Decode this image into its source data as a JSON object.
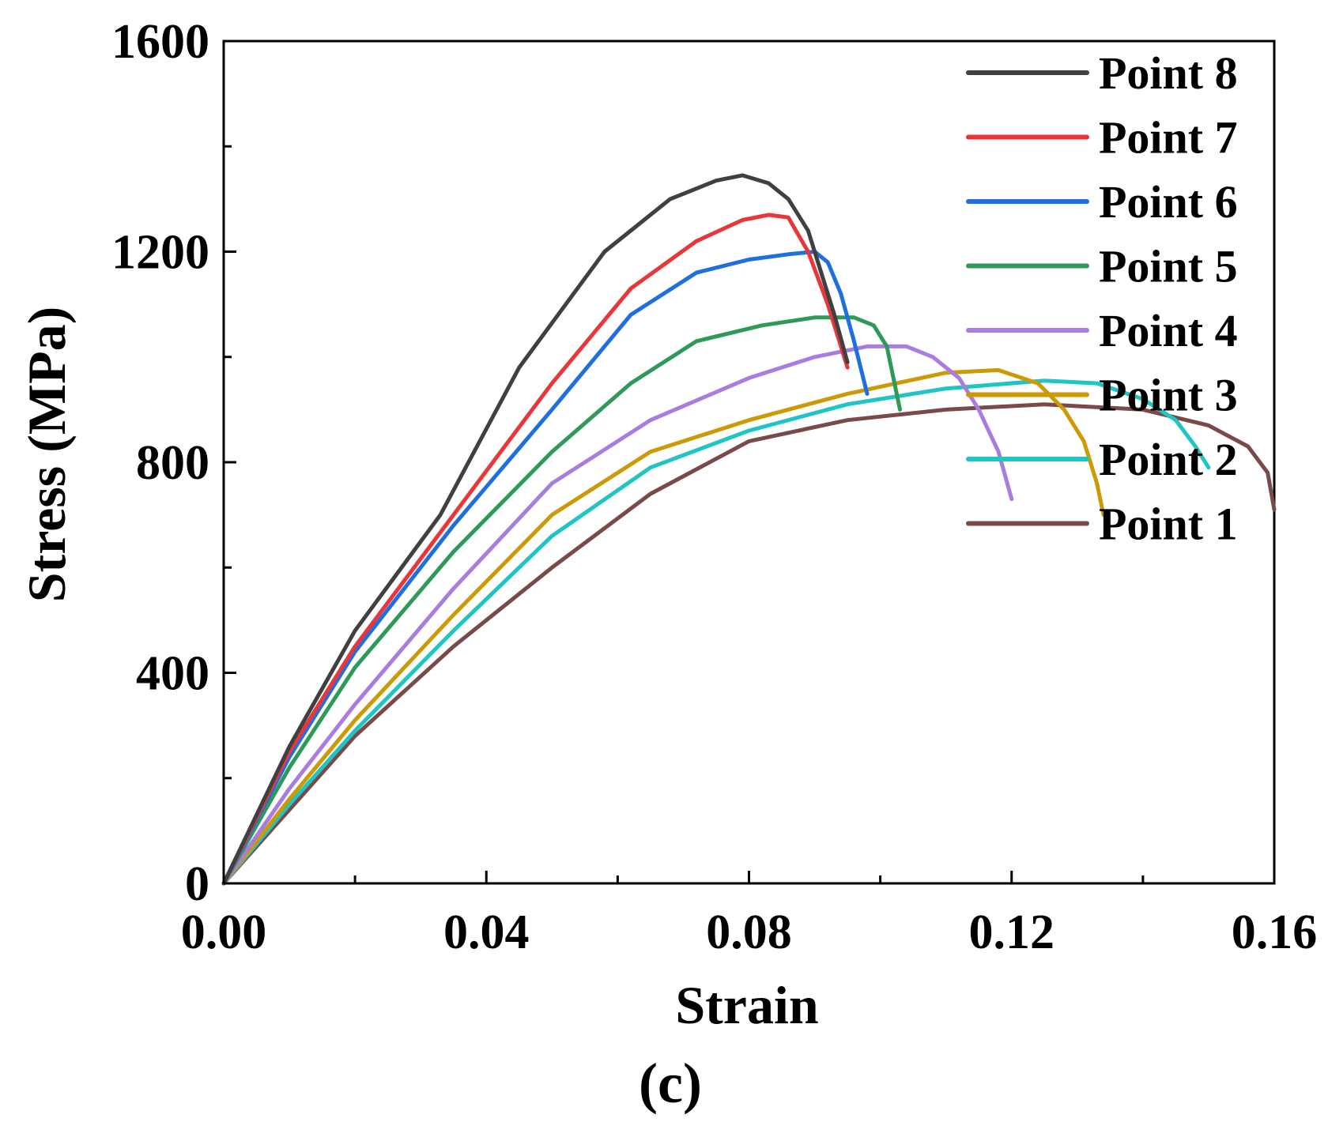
{
  "chart_data": {
    "type": "line",
    "title": "",
    "xlabel": "Strain",
    "ylabel": "Stress (MPa)",
    "caption": "(c)",
    "xlim": [
      0,
      0.16
    ],
    "ylim": [
      0,
      1600
    ],
    "xticks": [
      "0.00",
      "0.04",
      "0.08",
      "0.12",
      "0.16"
    ],
    "xtick_values": [
      0,
      0.04,
      0.08,
      0.12,
      0.16
    ],
    "yticks": [
      "0",
      "400",
      "800",
      "1200",
      "1600"
    ],
    "ytick_values": [
      0,
      400,
      800,
      1200,
      1600
    ],
    "legend_position": "top-right",
    "series": [
      {
        "name": "Point 8",
        "color": "#404040",
        "x": [
          0,
          0.01,
          0.02,
          0.033,
          0.045,
          0.058,
          0.068,
          0.075,
          0.079,
          0.083,
          0.086,
          0.089,
          0.091,
          0.093,
          0.095
        ],
        "y": [
          0,
          260,
          480,
          700,
          980,
          1200,
          1300,
          1335,
          1345,
          1330,
          1300,
          1240,
          1160,
          1080,
          990
        ]
      },
      {
        "name": "Point 7",
        "color": "#e8373a",
        "x": [
          0,
          0.01,
          0.02,
          0.035,
          0.05,
          0.062,
          0.072,
          0.079,
          0.083,
          0.086,
          0.089,
          0.092,
          0.095
        ],
        "y": [
          0,
          250,
          450,
          700,
          950,
          1130,
          1220,
          1260,
          1270,
          1265,
          1200,
          1100,
          980
        ]
      },
      {
        "name": "Point 6",
        "color": "#1f6fe0",
        "x": [
          0,
          0.01,
          0.02,
          0.035,
          0.05,
          0.062,
          0.072,
          0.08,
          0.086,
          0.09,
          0.092,
          0.094,
          0.096,
          0.098
        ],
        "y": [
          0,
          240,
          440,
          680,
          900,
          1080,
          1160,
          1185,
          1195,
          1200,
          1180,
          1120,
          1030,
          930
        ]
      },
      {
        "name": "Point 5",
        "color": "#2e9a58",
        "x": [
          0,
          0.01,
          0.02,
          0.035,
          0.05,
          0.062,
          0.072,
          0.082,
          0.09,
          0.096,
          0.099,
          0.101,
          0.102,
          0.103
        ],
        "y": [
          0,
          220,
          410,
          630,
          820,
          950,
          1030,
          1060,
          1075,
          1075,
          1060,
          1020,
          960,
          900
        ]
      },
      {
        "name": "Point 4",
        "color": "#a97de0",
        "x": [
          0,
          0.01,
          0.02,
          0.035,
          0.05,
          0.065,
          0.08,
          0.09,
          0.098,
          0.104,
          0.108,
          0.112,
          0.115,
          0.118,
          0.12
        ],
        "y": [
          0,
          180,
          340,
          560,
          760,
          880,
          960,
          1000,
          1020,
          1020,
          1000,
          960,
          900,
          820,
          730
        ]
      },
      {
        "name": "Point 3",
        "color": "#cc9a06",
        "x": [
          0,
          0.01,
          0.02,
          0.035,
          0.05,
          0.065,
          0.08,
          0.095,
          0.11,
          0.118,
          0.124,
          0.128,
          0.131,
          0.133,
          0.134
        ],
        "y": [
          0,
          160,
          310,
          510,
          700,
          820,
          880,
          930,
          970,
          975,
          950,
          900,
          840,
          760,
          700
        ]
      },
      {
        "name": "Point 2",
        "color": "#1fc4c4",
        "x": [
          0,
          0.01,
          0.02,
          0.035,
          0.05,
          0.065,
          0.08,
          0.095,
          0.11,
          0.125,
          0.133,
          0.14,
          0.145,
          0.148,
          0.15
        ],
        "y": [
          0,
          150,
          290,
          480,
          660,
          790,
          860,
          910,
          940,
          955,
          950,
          920,
          880,
          830,
          790
        ]
      },
      {
        "name": "Point 1",
        "color": "#7a4a48",
        "x": [
          0,
          0.01,
          0.02,
          0.035,
          0.05,
          0.065,
          0.08,
          0.095,
          0.11,
          0.125,
          0.14,
          0.15,
          0.156,
          0.159,
          0.16
        ],
        "y": [
          0,
          140,
          280,
          450,
          600,
          740,
          840,
          880,
          900,
          910,
          900,
          870,
          830,
          780,
          710
        ]
      }
    ]
  }
}
